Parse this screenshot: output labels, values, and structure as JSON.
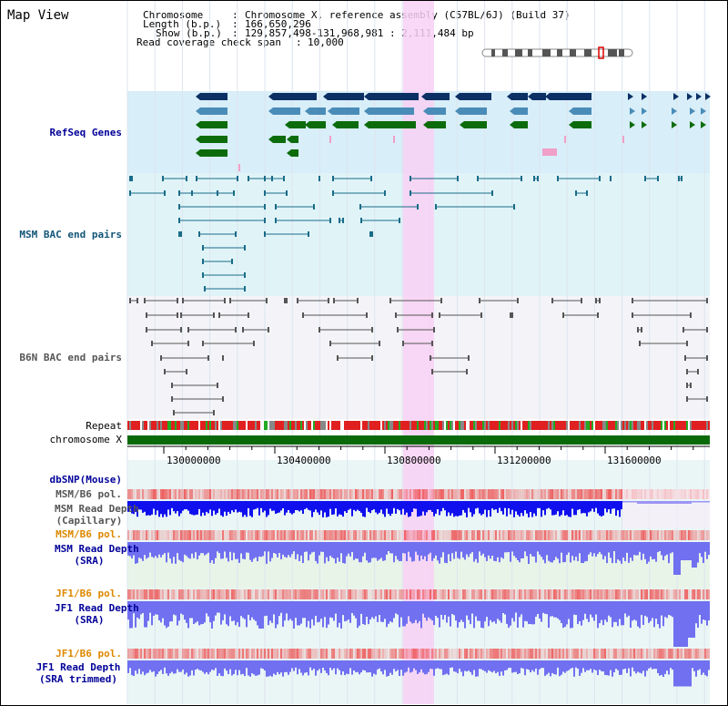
{
  "page": {
    "title": "Map View"
  },
  "info": {
    "chromosome_key": "Chromosome",
    "chromosome_val": "Chromosome X, reference assembly (C57BL/6J) (Build 37)",
    "length_key": "Length (b.p.)",
    "length_val": "166,650,296",
    "show_key": "Show (b.p.)",
    "show_val": "129,857,498-131,968,981 : 2,111,484 bp",
    "coverage_key": "Read coverage check span",
    "coverage_val": "10,000"
  },
  "tracks": {
    "refseq": "RefSeq Genes",
    "msm_bac": "MSM BAC end pairs",
    "b6n_bac": "B6N BAC end pairs",
    "repeat": "Repeat",
    "chromosome": "chromosome X",
    "dbsnp": "dbSNP(Mouse)",
    "msm_b6_pol_1": "MSM/B6 pol.",
    "msm_depth_cap_1": "MSM Read Depth",
    "msm_depth_cap_2": "(Capillary)",
    "msm_b6_pol_2": "MSM/B6 pol.",
    "msm_depth_sra_1": "MSM Read Depth",
    "msm_depth_sra_2": "(SRA)",
    "jf1_b6_pol_1": "JF1/B6 pol.",
    "jf1_depth_sra_1": "JF1 Read Depth",
    "jf1_depth_sra_2": "(SRA)",
    "jf1_b6_pol_2": "JF1/B6 pol.",
    "jf1_depth_trim_1": "JF1 Read Depth",
    "jf1_depth_trim_2": "(SRA trimmed)"
  },
  "axis": {
    "ticks": [
      "130000000",
      "130400000",
      "130800000",
      "131200000",
      "131600000"
    ]
  },
  "colors": {
    "highlight": "#f8d0f4",
    "refseq_bg": "#d8eef8",
    "msm_bg": "#e0f4f8",
    "gene_navy": "#0c3064",
    "gene_steel": "#4a8cb8",
    "gene_green": "#0c6c0c",
    "gene_pink": "#f0a0c8",
    "msm_line": "#1a6c88",
    "b6n_line": "#555555",
    "chromosome": "#0a6a0a",
    "depth_dark": "#1010ee",
    "depth_mid": "#7070f0",
    "pol_red": "#ee4444",
    "label_blue": "#000099",
    "label_orange": "#dd8800",
    "label_grey": "#555555",
    "label_teal": "#115577"
  }
}
